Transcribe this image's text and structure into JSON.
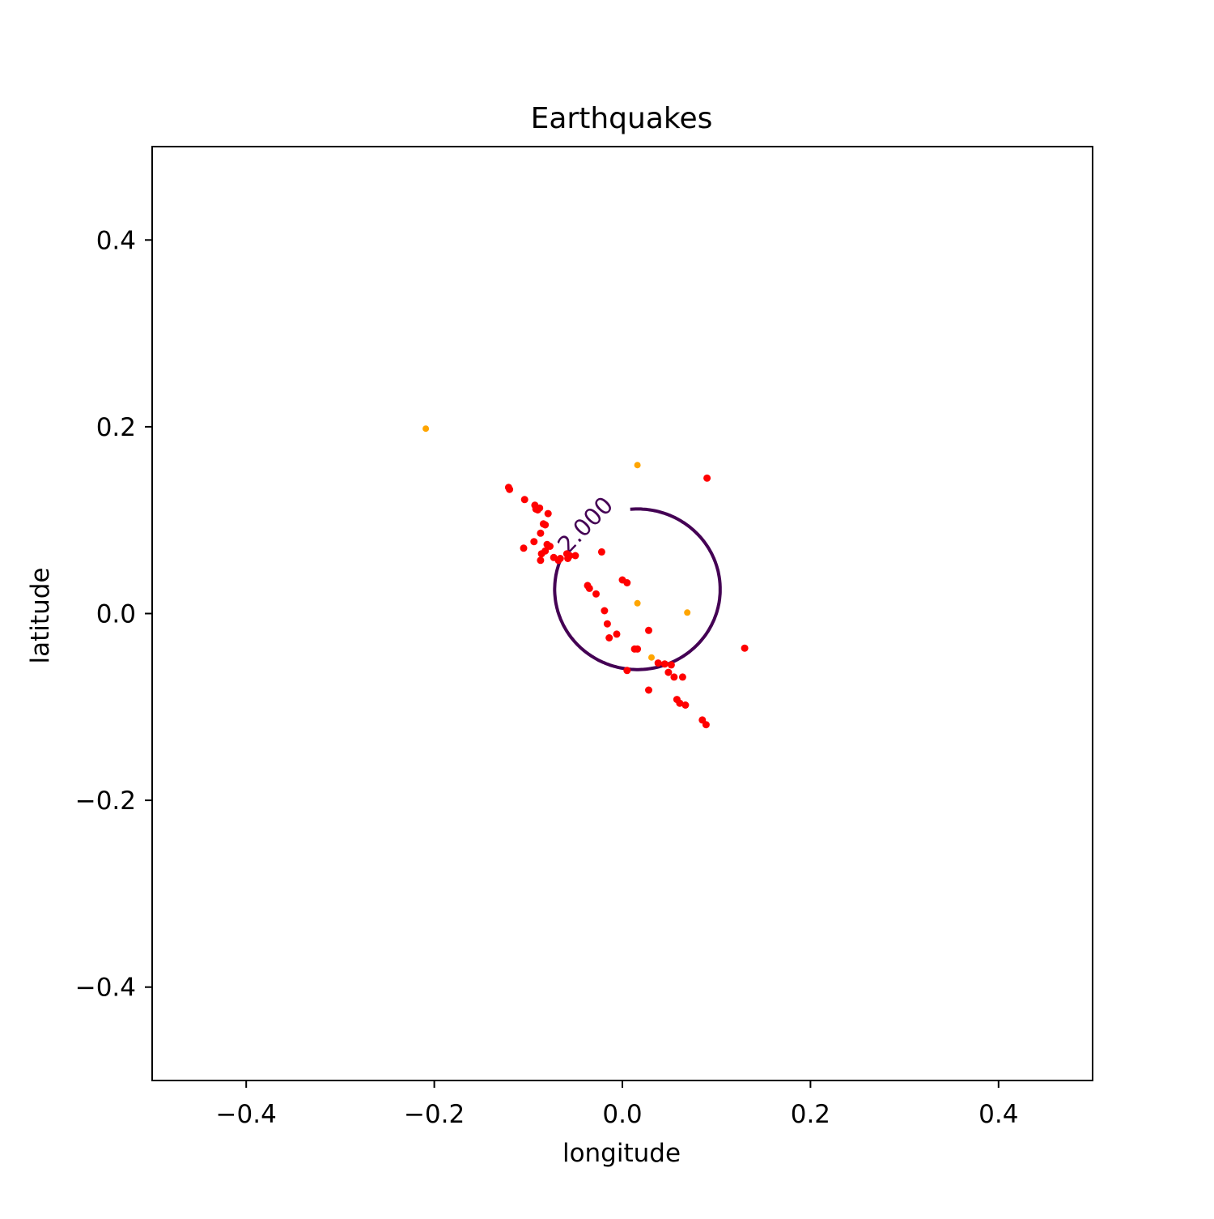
{
  "chart_data": {
    "type": "scatter",
    "title": "Earthquakes",
    "xlabel": "longitude",
    "ylabel": "latitude",
    "xlim": [
      -0.5,
      0.5
    ],
    "ylim": [
      -0.5,
      0.5
    ],
    "xticks": [
      -0.4,
      -0.2,
      0.0,
      0.2,
      0.4
    ],
    "xtick_labels": [
      "−0.4",
      "−0.2",
      "0.0",
      "0.2",
      "0.4"
    ],
    "yticks": [
      0.4,
      0.2,
      0.0,
      -0.2,
      -0.4
    ],
    "ytick_labels": [
      "0.4",
      "0.2",
      "0.0",
      "−0.2",
      "−0.4"
    ],
    "grid": false,
    "colors": {
      "red": "#ff0000",
      "orange": "#ffa500",
      "contour": "#440154"
    },
    "contour": {
      "level_label": "2.000",
      "center": [
        0.016,
        0.026
      ],
      "radius": [
        0.088,
        0.086
      ]
    },
    "series": [
      {
        "color": "red",
        "points": [
          [
            -0.12,
            0.133
          ],
          [
            -0.121,
            0.135
          ],
          [
            -0.104,
            0.122
          ],
          [
            -0.093,
            0.116
          ],
          [
            -0.09,
            0.111
          ],
          [
            -0.088,
            0.113
          ],
          [
            -0.092,
            0.112
          ],
          [
            -0.079,
            0.107
          ],
          [
            -0.084,
            0.096
          ],
          [
            -0.082,
            0.095
          ],
          [
            -0.087,
            0.086
          ],
          [
            -0.094,
            0.077
          ],
          [
            -0.105,
            0.07
          ],
          [
            -0.08,
            0.074
          ],
          [
            -0.077,
            0.072
          ],
          [
            -0.082,
            0.067
          ],
          [
            -0.086,
            0.064
          ],
          [
            -0.073,
            0.06
          ],
          [
            -0.066,
            0.059
          ],
          [
            -0.068,
            0.057
          ],
          [
            -0.087,
            0.057
          ],
          [
            -0.059,
            0.064
          ],
          [
            -0.058,
            0.059
          ],
          [
            -0.056,
            0.062
          ],
          [
            -0.05,
            0.062
          ],
          [
            -0.022,
            0.066
          ],
          [
            -0.037,
            0.03
          ],
          [
            -0.035,
            0.027
          ],
          [
            -0.028,
            0.021
          ],
          [
            0.0,
            0.036
          ],
          [
            0.005,
            0.033
          ],
          [
            -0.019,
            0.003
          ],
          [
            -0.016,
            -0.011
          ],
          [
            -0.006,
            -0.022
          ],
          [
            -0.014,
            -0.026
          ],
          [
            0.013,
            -0.038
          ],
          [
            0.016,
            -0.038
          ],
          [
            0.028,
            -0.018
          ],
          [
            0.038,
            -0.053
          ],
          [
            0.045,
            -0.054
          ],
          [
            0.052,
            -0.055
          ],
          [
            0.049,
            -0.063
          ],
          [
            0.055,
            -0.068
          ],
          [
            0.064,
            -0.068
          ],
          [
            0.005,
            -0.061
          ],
          [
            0.028,
            -0.082
          ],
          [
            0.058,
            -0.092
          ],
          [
            0.061,
            -0.096
          ],
          [
            0.067,
            -0.098
          ],
          [
            0.085,
            -0.114
          ],
          [
            0.089,
            -0.119
          ],
          [
            0.09,
            0.145
          ],
          [
            0.13,
            -0.037
          ]
        ]
      },
      {
        "color": "orange",
        "points": [
          [
            -0.209,
            0.198
          ],
          [
            0.016,
            0.159
          ],
          [
            0.016,
            0.011
          ],
          [
            0.069,
            0.001
          ],
          [
            0.031,
            -0.047
          ]
        ]
      }
    ]
  }
}
